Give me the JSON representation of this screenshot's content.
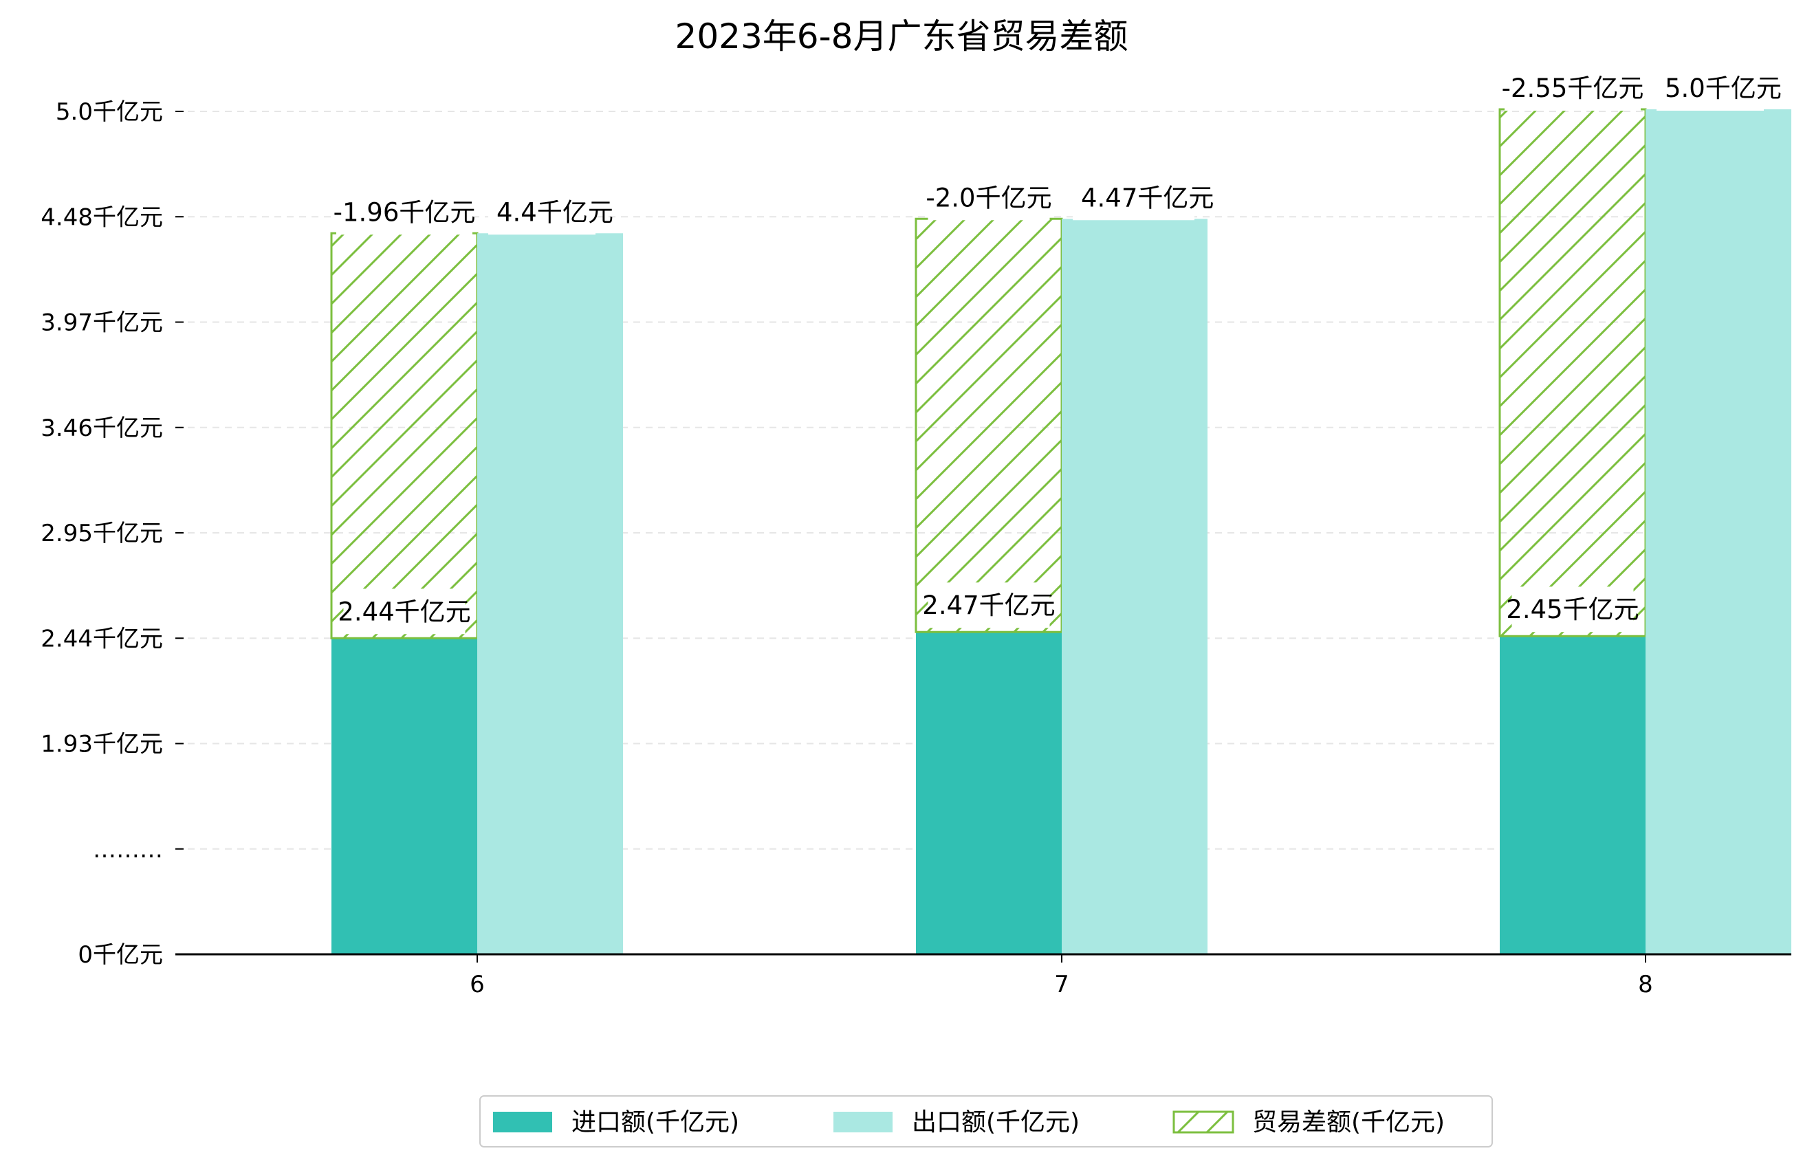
{
  "chart_data": {
    "type": "bar",
    "title": "2023年6-8月广东省贸易差额",
    "xlabel": "",
    "ylabel": "",
    "categories": [
      "6",
      "7",
      "8"
    ],
    "y_ticks": [
      {
        "value": 0,
        "label": "0千亿元"
      },
      {
        "value": 1,
        "label": "………"
      },
      {
        "value": 2,
        "label": "1.93千亿元"
      },
      {
        "value": 3,
        "label": "2.44千亿元"
      },
      {
        "value": 4,
        "label": "2.95千亿元"
      },
      {
        "value": 5,
        "label": "3.46千亿元"
      },
      {
        "value": 6,
        "label": "3.97千亿元"
      },
      {
        "value": 7,
        "label": "4.48千亿元"
      },
      {
        "value": 8,
        "label": "5.0千亿元"
      }
    ],
    "ylim": [
      0,
      8.4
    ],
    "axis_note": "broken y-axis: 0 to 2.44 compressed, linear from 2.44 upward",
    "grid": "horizontal dashed",
    "legend_position": "bottom-center",
    "series": [
      {
        "name": "进口额(千亿元)",
        "values": [
          2.44,
          2.47,
          2.45
        ],
        "labels": [
          "2.44千亿元",
          "2.47千亿元",
          "2.45千亿元"
        ],
        "color": "#31c0b3",
        "style": "solid"
      },
      {
        "name": "出口额(千亿元)",
        "values": [
          4.4,
          4.47,
          5.0
        ],
        "labels": [
          "4.4千亿元",
          "4.47千亿元",
          "5.0千亿元"
        ],
        "color": "#aae8e2",
        "style": "solid"
      },
      {
        "name": "贸易差额(千亿元)",
        "values": [
          -1.96,
          -2.0,
          -2.55
        ],
        "labels": [
          "-1.96千亿元",
          "-2.0千亿元",
          "-2.55千亿元"
        ],
        "color": "#7cbf3f",
        "style": "hatched",
        "stacked_on": "进口额(千亿元)"
      }
    ]
  }
}
